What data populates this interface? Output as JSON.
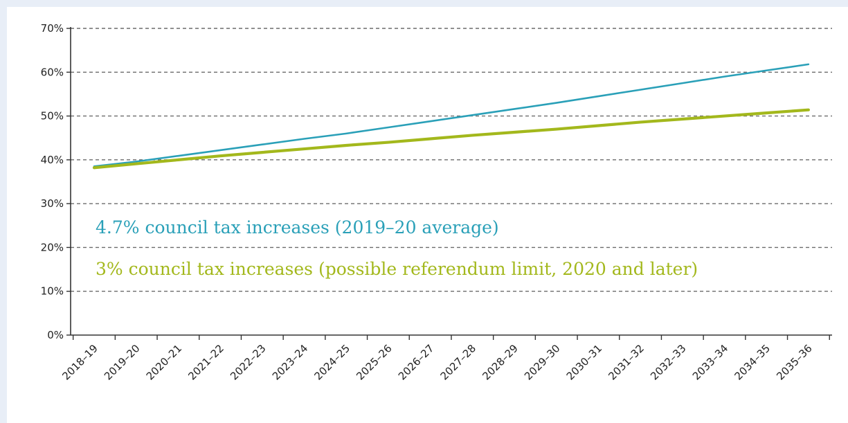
{
  "colors": {
    "background": "#e8eef7",
    "panel": "#ffffff",
    "grid": "#6b6b6b",
    "axis": "#333333",
    "series_blue": "#2aa0b8",
    "series_green": "#a3b81c"
  },
  "chart_data": {
    "type": "line",
    "title": "",
    "xlabel": "",
    "ylabel": "",
    "ylim": [
      0,
      70
    ],
    "y_ticks": [
      0,
      10,
      20,
      30,
      40,
      50,
      60,
      70
    ],
    "y_tick_labels": [
      "0%",
      "10%",
      "20%",
      "30%",
      "40%",
      "50%",
      "60%",
      "70%"
    ],
    "grid": "horizontal-dashed",
    "categories": [
      "2018–19",
      "2019–20",
      "2020–21",
      "2021–22",
      "2022–23",
      "2023–24",
      "2024–25",
      "2025–26",
      "2026–27",
      "2027–28",
      "2028–29",
      "2029–30",
      "2030–31",
      "2031–32",
      "2032–33",
      "2033–34",
      "2034–35",
      "2035–36"
    ],
    "series": [
      {
        "name": "4.7% council tax increases (2019–20 average)",
        "color": "#2aa0b8",
        "values": [
          38.5,
          39.6,
          40.9,
          42.2,
          43.5,
          44.8,
          46.0,
          47.4,
          48.8,
          50.2,
          51.6,
          53.0,
          54.5,
          56.0,
          57.5,
          59.0,
          60.4,
          61.8
        ]
      },
      {
        "name": "3% council tax increases (possible referendum limit, 2020 and later)",
        "color": "#a3b81c",
        "values": [
          38.2,
          39.1,
          40.0,
          40.9,
          41.7,
          42.5,
          43.3,
          44.0,
          44.8,
          45.6,
          46.3,
          47.0,
          47.8,
          48.6,
          49.3,
          50.0,
          50.7,
          51.4
        ]
      }
    ]
  }
}
